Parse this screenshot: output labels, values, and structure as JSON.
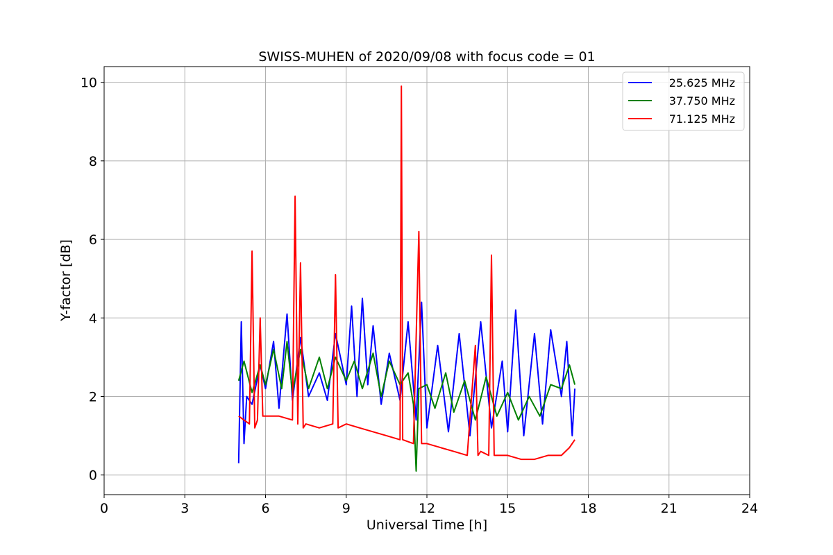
{
  "chart_data": {
    "type": "line",
    "title": "SWISS-MUHEN of 2020/09/08 with focus code = 01",
    "xlabel": "Universal Time [h]",
    "ylabel": "Y-factor [dB]",
    "xlim": [
      0,
      24
    ],
    "ylim": [
      -0.5,
      10.4
    ],
    "xticks": [
      0,
      3,
      6,
      9,
      12,
      15,
      18,
      21,
      24
    ],
    "xtick_labels": [
      "0",
      "3",
      "6",
      "9",
      "12",
      "15",
      "18",
      "21",
      "24"
    ],
    "yticks": [
      0,
      2,
      4,
      6,
      8,
      10
    ],
    "ytick_labels": [
      "0",
      "2",
      "4",
      "6",
      "8",
      "10"
    ],
    "grid": true,
    "legend_position": "top-right",
    "series": [
      {
        "name": "25.625 MHz",
        "color": "#0000ff",
        "x": [
          5.0,
          5.1,
          5.2,
          5.3,
          5.5,
          5.8,
          6.0,
          6.3,
          6.5,
          6.8,
          7.0,
          7.3,
          7.6,
          8.0,
          8.3,
          8.6,
          9.0,
          9.2,
          9.4,
          9.6,
          9.8,
          10.0,
          10.3,
          10.6,
          11.0,
          11.3,
          11.6,
          11.8,
          12.0,
          12.4,
          12.8,
          13.2,
          13.6,
          14.0,
          14.4,
          14.8,
          15.0,
          15.3,
          15.6,
          16.0,
          16.3,
          16.6,
          17.0,
          17.2,
          17.4,
          17.5
        ],
        "y": [
          0.3,
          3.9,
          0.8,
          2.0,
          1.8,
          2.8,
          2.2,
          3.4,
          1.7,
          4.1,
          1.9,
          3.5,
          2.0,
          2.6,
          1.9,
          3.6,
          2.3,
          4.3,
          2.0,
          4.5,
          2.3,
          3.8,
          1.8,
          3.1,
          1.9,
          3.9,
          1.4,
          4.4,
          1.2,
          3.3,
          1.1,
          3.6,
          1.0,
          3.9,
          1.2,
          2.9,
          1.1,
          4.2,
          1.0,
          3.6,
          1.3,
          3.7,
          2.0,
          3.4,
          1.0,
          2.2
        ]
      },
      {
        "name": "37.750 MHz",
        "color": "#008000",
        "x": [
          5.0,
          5.2,
          5.5,
          5.8,
          6.0,
          6.3,
          6.6,
          6.8,
          7.0,
          7.3,
          7.6,
          8.0,
          8.3,
          8.6,
          9.0,
          9.3,
          9.6,
          10.0,
          10.3,
          10.6,
          11.0,
          11.3,
          11.5,
          11.6,
          11.7,
          12.0,
          12.3,
          12.7,
          13.0,
          13.4,
          13.8,
          14.2,
          14.6,
          15.0,
          15.4,
          15.8,
          16.2,
          16.6,
          17.0,
          17.3,
          17.5
        ],
        "y": [
          2.4,
          2.9,
          2.1,
          2.8,
          2.3,
          3.2,
          2.2,
          3.4,
          2.1,
          3.2,
          2.2,
          3.0,
          2.2,
          3.0,
          2.4,
          2.9,
          2.2,
          3.1,
          2.0,
          2.9,
          2.3,
          2.6,
          1.8,
          0.1,
          2.2,
          2.3,
          1.7,
          2.6,
          1.6,
          2.4,
          1.4,
          2.5,
          1.5,
          2.1,
          1.4,
          2.0,
          1.5,
          2.3,
          2.2,
          2.8,
          2.3
        ]
      },
      {
        "name": "71.125 MHz",
        "color": "#ff0000",
        "x": [
          5.0,
          5.2,
          5.4,
          5.5,
          5.6,
          5.7,
          5.8,
          5.9,
          6.0,
          6.5,
          7.0,
          7.1,
          7.2,
          7.3,
          7.4,
          7.5,
          8.0,
          8.5,
          8.6,
          8.7,
          9.0,
          9.5,
          10.0,
          10.5,
          11.0,
          11.05,
          11.1,
          11.5,
          11.7,
          11.8,
          12.0,
          12.5,
          13.0,
          13.5,
          13.8,
          13.9,
          14.0,
          14.3,
          14.4,
          14.5,
          15.0,
          15.5,
          16.0,
          16.5,
          17.0,
          17.3,
          17.5
        ],
        "y": [
          1.5,
          1.4,
          1.3,
          5.7,
          1.2,
          1.4,
          4.0,
          1.5,
          1.5,
          1.5,
          1.4,
          7.1,
          1.3,
          5.4,
          1.2,
          1.3,
          1.2,
          1.3,
          5.1,
          1.2,
          1.3,
          1.2,
          1.1,
          1.0,
          0.9,
          9.9,
          0.9,
          0.8,
          6.2,
          0.8,
          0.8,
          0.7,
          0.6,
          0.5,
          3.3,
          0.5,
          0.6,
          0.5,
          5.6,
          0.5,
          0.5,
          0.4,
          0.4,
          0.5,
          0.5,
          0.7,
          0.9
        ]
      }
    ]
  }
}
